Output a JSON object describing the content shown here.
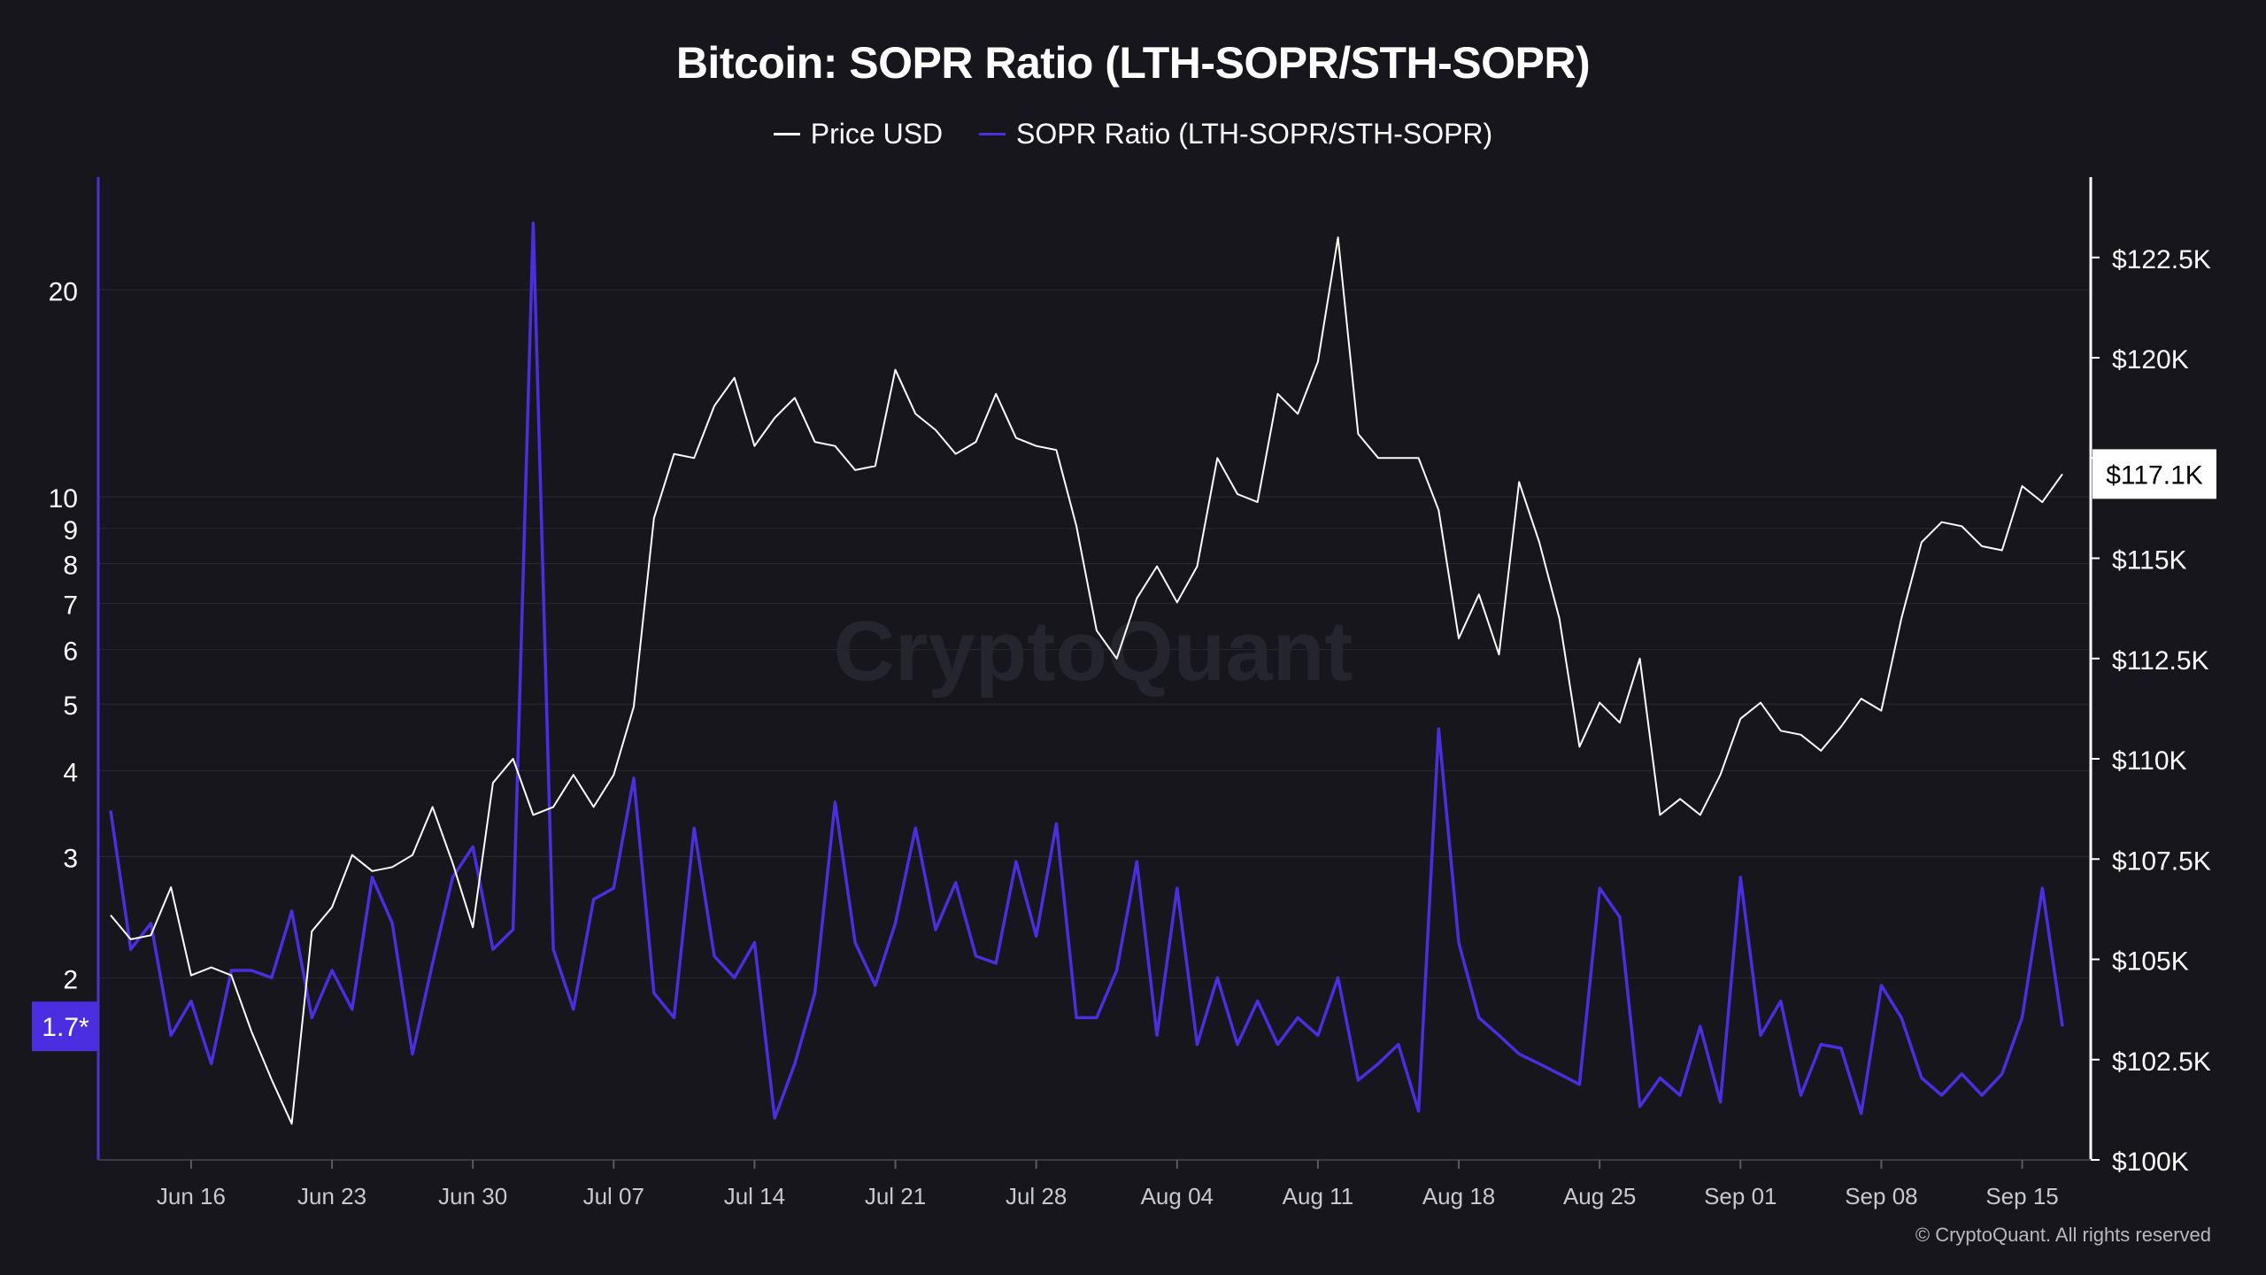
{
  "title": "Bitcoin: SOPR Ratio (LTH-SOPR/STH-SOPR)",
  "credit": "© CryptoQuant. All rights reserved",
  "watermark": "CryptoQuant",
  "legend": [
    {
      "label": "Price USD",
      "color": "#ffffff"
    },
    {
      "label": "SOPR Ratio (LTH-SOPR/STH-SOPR)",
      "color": "#4a2ee0"
    }
  ],
  "colors": {
    "background": "#16161c",
    "grid": "#2a2a32",
    "price": "#ffffff",
    "sopr": "#4a2ee0",
    "sopr_badge": "#4a2ee0",
    "price_badge_bg": "#ffffff"
  },
  "chart_data": {
    "type": "line",
    "x_labels": [
      "Jun 16",
      "Jun 23",
      "Jun 30",
      "Jul 07",
      "Jul 14",
      "Jul 21",
      "Jul 28",
      "Aug 04",
      "Aug 11",
      "Aug 18",
      "Aug 25",
      "Sep 01",
      "Sep 08",
      "Sep 15"
    ],
    "x_start": "Jun 12",
    "x_end": "Sep 18",
    "left_axis": {
      "scale": "log",
      "ticks": [
        20,
        10,
        9,
        8,
        7,
        6,
        5,
        4,
        3,
        2
      ],
      "current_label": "1.7*",
      "current_value": 1.7
    },
    "right_axis": {
      "ticks": [
        "$100K",
        "$102.5K",
        "$105K",
        "$107.5K",
        "$110K",
        "$112.5K",
        "$115K",
        "$117.5K",
        "$120K",
        "$122.5K"
      ],
      "tick_values": [
        100000,
        102500,
        105000,
        107500,
        110000,
        112500,
        115000,
        117500,
        120000,
        122500
      ],
      "current_label": "$117.1K",
      "current_value": 117100
    },
    "series": [
      {
        "name": "Price USD",
        "axis": "right",
        "values": [
          106100,
          105500,
          105600,
          106800,
          104600,
          104800,
          104600,
          103200,
          102000,
          100900,
          105700,
          106300,
          107600,
          107200,
          107300,
          107600,
          108800,
          107400,
          105800,
          109400,
          110000,
          108600,
          108800,
          109600,
          108800,
          109600,
          111300,
          116000,
          117600,
          117500,
          118800,
          119500,
          117800,
          118500,
          119000,
          117900,
          117800,
          117200,
          117300,
          119700,
          118600,
          118200,
          117600,
          117900,
          119100,
          118000,
          117800,
          117700,
          115800,
          113200,
          112500,
          114000,
          114800,
          113900,
          114800,
          117500,
          116600,
          116400,
          119100,
          118600,
          119900,
          123000,
          118100,
          117500,
          117500,
          117500,
          116200,
          113000,
          114100,
          112600,
          116900,
          115400,
          113500,
          110300,
          111400,
          110900,
          112500,
          108600,
          109000,
          108600,
          109600,
          111000,
          111400,
          110700,
          110600,
          110200,
          110800,
          111500,
          111200,
          113500,
          115400,
          115900,
          115800,
          115300,
          115200,
          116800,
          116400,
          117100
        ]
      },
      {
        "name": "SOPR Ratio (LTH-SOPR/STH-SOPR)",
        "axis": "left",
        "values": [
          3.5,
          2.2,
          2.4,
          1.65,
          1.85,
          1.5,
          2.05,
          2.05,
          2.0,
          2.5,
          1.75,
          2.05,
          1.8,
          2.8,
          2.4,
          1.55,
          2.1,
          2.8,
          3.1,
          2.2,
          2.35,
          25.0,
          2.2,
          1.8,
          2.6,
          2.7,
          3.9,
          1.9,
          1.75,
          3.3,
          2.15,
          2.0,
          2.25,
          1.25,
          1.5,
          1.9,
          3.6,
          2.25,
          1.95,
          2.4,
          3.3,
          2.35,
          2.75,
          2.15,
          2.1,
          2.95,
          2.3,
          3.35,
          1.75,
          1.75,
          2.05,
          2.95,
          1.65,
          2.7,
          1.6,
          2.0,
          1.6,
          1.85,
          1.6,
          1.75,
          1.65,
          2.0,
          1.42,
          1.5,
          1.6,
          1.28,
          4.6,
          2.25,
          1.75,
          1.65,
          1.55,
          1.5,
          1.45,
          1.4,
          2.7,
          2.45,
          1.3,
          1.43,
          1.35,
          1.7,
          1.32,
          2.8,
          1.65,
          1.85,
          1.35,
          1.6,
          1.58,
          1.27,
          1.95,
          1.75,
          1.43,
          1.35,
          1.45,
          1.35,
          1.45,
          1.75,
          2.7,
          1.7
        ]
      }
    ]
  }
}
